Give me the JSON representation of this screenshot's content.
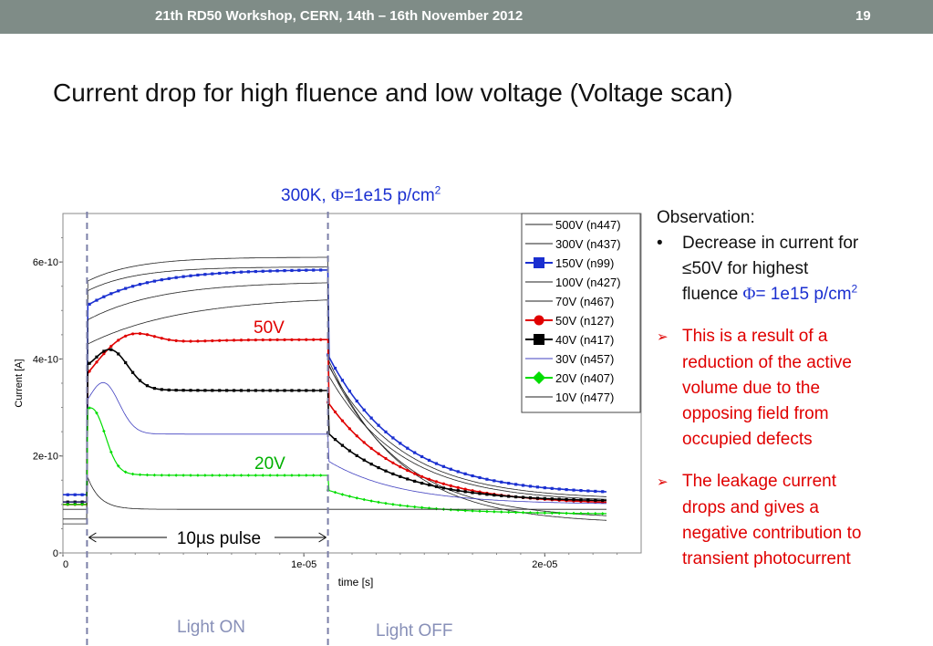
{
  "header": {
    "text": "21th  RD50 Workshop, CERN, 14th – 16th November 2012",
    "page": "19"
  },
  "slide_title": "Current drop for high fluence and low voltage  (Voltage scan)",
  "chart_title": {
    "prefix": "300K, ",
    "phi": "Φ",
    "value": "=1e15 p/cm",
    "sup": "2"
  },
  "annotations": {
    "label_50v": "50V",
    "label_20v": "20V",
    "pulse": "10µs pulse",
    "light_on": "Light ON",
    "light_off": "Light OFF"
  },
  "observations": {
    "heading": "Observation:",
    "bullet_symbol": "•",
    "b1_line1": "Decrease in current for",
    "b1_le": "≤",
    "b1_line2": "50V for highest",
    "b1_line3a": "fluence ",
    "b1_phi": "Φ",
    "b1_line3b": "= 1e15 p/cm",
    "b1_sup": "2",
    "arrow": "➢",
    "r1": [
      "This is a result of a",
      "reduction of the active",
      "volume due to the",
      "opposing field from",
      "occupied defects"
    ],
    "r2": [
      "The leakage current",
      "drops and gives a",
      "negative contribution to",
      "transient photocurrent"
    ]
  },
  "colors": {
    "header_bg": "#7f8c87",
    "accent_blue": "#1a2fd0",
    "accent_red": "#e00000",
    "green": "#00dd00",
    "dash": "#7b7fa8"
  },
  "chart_data": {
    "type": "line",
    "title": "300K, Φ=1e15 p/cm2",
    "xlabel": "time [s]",
    "ylabel": "Current [A]",
    "xlim": [
      0,
      2.4e-05
    ],
    "ylim": [
      0,
      7e-10
    ],
    "xticks": [
      0,
      1e-05,
      2e-05
    ],
    "xtick_labels": [
      "0",
      "1e-05",
      "2e-05"
    ],
    "yticks": [
      0,
      2e-10,
      4e-10,
      6e-10
    ],
    "ytick_labels": [
      "0",
      "2e-10",
      "4e-10",
      "6e-10"
    ],
    "light_on": 1e-06,
    "light_off": 1.1e-05,
    "legend_position": "top-right",
    "series": [
      {
        "name": "500V (n447)",
        "color": "#222222",
        "marker": "none",
        "pre": 6e-11,
        "start": 5.6e-10,
        "plateau": 6.1e-10,
        "tau": 2e-06,
        "tail": 6e-11,
        "bump": 0,
        "width": 0.8
      },
      {
        "name": "300V (n437)",
        "color": "#222222",
        "marker": "none",
        "pre": 7e-11,
        "start": 5.4e-10,
        "plateau": 5.9e-10,
        "tau": 2e-06,
        "tail": 7e-11,
        "bump": 0,
        "width": 0.8
      },
      {
        "name": "150V (n99)",
        "color": "#1a2fd0",
        "marker": "square",
        "pre": 1.2e-10,
        "start": 5.1e-10,
        "plateau": 5.85e-10,
        "tau": 2.5e-06,
        "tail": 1.2e-10,
        "bump": 0,
        "width": 1.6
      },
      {
        "name": "100V (n427)",
        "color": "#222222",
        "marker": "none",
        "pre": 1e-10,
        "start": 4.8e-10,
        "plateau": 5.6e-10,
        "tau": 3e-06,
        "tail": 1.1e-10,
        "bump": 0,
        "width": 0.8
      },
      {
        "name": "70V (n467)",
        "color": "#222222",
        "marker": "none",
        "pre": 1e-10,
        "start": 4.3e-10,
        "plateau": 5.3e-10,
        "tau": 4e-06,
        "tail": 1.05e-10,
        "bump": 0,
        "width": 0.8
      },
      {
        "name": "50V (n127)",
        "color": "#e00000",
        "marker": "circle",
        "pre": 1e-10,
        "start": 3.6e-10,
        "plateau": 4.4e-10,
        "tau": 1.5e-06,
        "tail": 1e-10,
        "bump": 3.5e-11,
        "bumpAt": 2.7e-06,
        "bumpW": 1.4e-06,
        "width": 1.6
      },
      {
        "name": "40V (n417)",
        "color": "#000000",
        "marker": "square",
        "pre": 1.05e-10,
        "start": 3.6e-10,
        "plateau": 3.35e-10,
        "tau": 1e-06,
        "tail": 1.05e-10,
        "bump": 7.5e-11,
        "bumpAt": 2e-06,
        "bumpW": 1e-06,
        "width": 1.6
      },
      {
        "name": "30V (n457)",
        "color": "#4040c0",
        "marker": "none",
        "pre": 1.05e-10,
        "start": 2.6e-10,
        "plateau": 2.45e-10,
        "tau": 8e-07,
        "tail": 1e-10,
        "bump": 1e-10,
        "bumpAt": 1.7e-06,
        "bumpW": 9e-07,
        "width": 0.8
      },
      {
        "name": "20V (n407)",
        "color": "#00dd00",
        "marker": "diamond",
        "pre": 1e-10,
        "start": 2.1e-10,
        "plateau": 1.6e-10,
        "tau": 6e-07,
        "tail": 8e-11,
        "bump": 1.05e-10,
        "bumpAt": 1.3e-06,
        "bumpW": 7e-07,
        "width": 1.2
      },
      {
        "name": "10V (n477)",
        "color": "#222222",
        "marker": "none",
        "pre": 9e-11,
        "start": 1.6e-10,
        "plateau": 9e-11,
        "tau": 5e-07,
        "tail": 9e-11,
        "bump": 0,
        "width": 0.8
      }
    ]
  }
}
